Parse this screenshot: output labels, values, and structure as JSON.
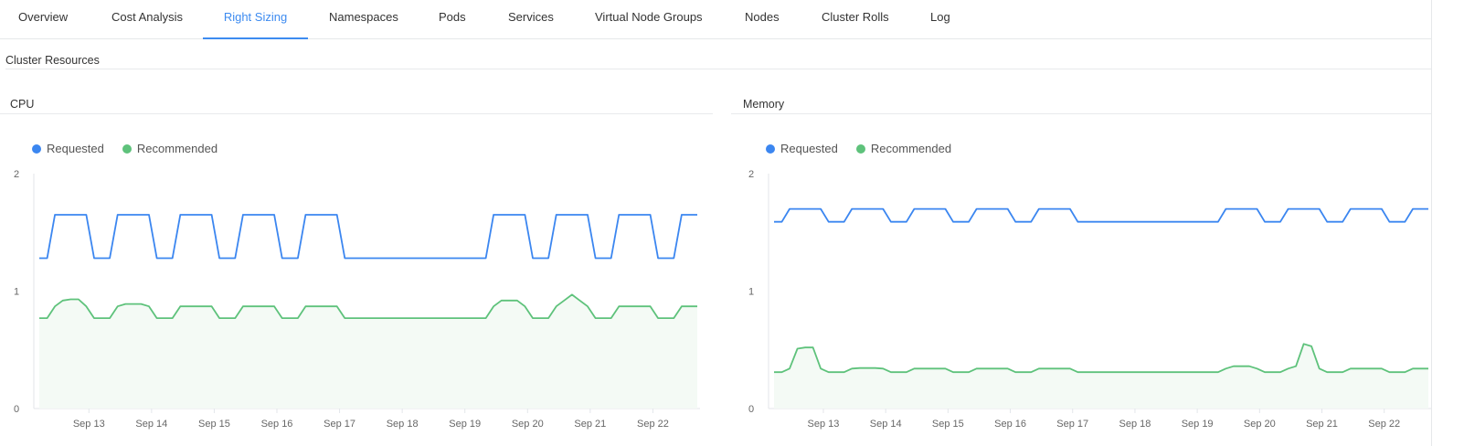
{
  "tabs": [
    {
      "label": "Overview"
    },
    {
      "label": "Cost Analysis"
    },
    {
      "label": "Right Sizing",
      "active": true
    },
    {
      "label": "Namespaces"
    },
    {
      "label": "Pods"
    },
    {
      "label": "Services"
    },
    {
      "label": "Virtual Node Groups"
    },
    {
      "label": "Nodes"
    },
    {
      "label": "Cluster Rolls"
    },
    {
      "label": "Log"
    }
  ],
  "section_title": "Cluster Resources",
  "colors": {
    "accent": "#3d8bf0",
    "requested": "#3b86f0",
    "recommended": "#5ec27b",
    "recommended_fill": "#f4faf5"
  },
  "chart_data": [
    {
      "title": "CPU",
      "type": "area",
      "legend": {
        "placement": "top-left",
        "entries": [
          "Requested",
          "Recommended"
        ]
      },
      "ylim": [
        0,
        2
      ],
      "yticks": [
        "0",
        "1",
        "2"
      ],
      "xticks": [
        "Sep 13",
        "Sep 14",
        "Sep 15",
        "Sep 16",
        "Sep 17",
        "Sep 18",
        "Sep 19",
        "Sep 20",
        "Sep 21",
        "Sep 22"
      ],
      "xlim": [
        "Sep 12 05:00",
        "Sep 22 17:00"
      ],
      "grid": false,
      "series": [
        {
          "name": "Requested",
          "color": "#3b86f0",
          "values": [
            1.28,
            1.28,
            1.65,
            1.65,
            1.65,
            1.65,
            1.65,
            1.28,
            1.28,
            1.28,
            1.65,
            1.65,
            1.65,
            1.65,
            1.65,
            1.28,
            1.28,
            1.28,
            1.65,
            1.65,
            1.65,
            1.65,
            1.65,
            1.28,
            1.28,
            1.28,
            1.65,
            1.65,
            1.65,
            1.65,
            1.65,
            1.28,
            1.28,
            1.28,
            1.65,
            1.65,
            1.65,
            1.65,
            1.65,
            1.28,
            1.28,
            1.28,
            1.28,
            1.28,
            1.28,
            1.28,
            1.28,
            1.28,
            1.28,
            1.28,
            1.28,
            1.28,
            1.28,
            1.28,
            1.28,
            1.28,
            1.28,
            1.28,
            1.65,
            1.65,
            1.65,
            1.65,
            1.65,
            1.28,
            1.28,
            1.28,
            1.65,
            1.65,
            1.65,
            1.65,
            1.65,
            1.28,
            1.28,
            1.28,
            1.65,
            1.65,
            1.65,
            1.65,
            1.65,
            1.28,
            1.28,
            1.28,
            1.65,
            1.65,
            1.65
          ]
        },
        {
          "name": "Recommended",
          "color": "#5ec27b",
          "fill": true,
          "values": [
            0.77,
            0.77,
            0.87,
            0.92,
            0.93,
            0.93,
            0.87,
            0.77,
            0.77,
            0.77,
            0.87,
            0.89,
            0.89,
            0.89,
            0.87,
            0.77,
            0.77,
            0.77,
            0.87,
            0.87,
            0.87,
            0.87,
            0.87,
            0.77,
            0.77,
            0.77,
            0.87,
            0.87,
            0.87,
            0.87,
            0.87,
            0.77,
            0.77,
            0.77,
            0.87,
            0.87,
            0.87,
            0.87,
            0.87,
            0.77,
            0.77,
            0.77,
            0.77,
            0.77,
            0.77,
            0.77,
            0.77,
            0.77,
            0.77,
            0.77,
            0.77,
            0.77,
            0.77,
            0.77,
            0.77,
            0.77,
            0.77,
            0.77,
            0.87,
            0.92,
            0.92,
            0.92,
            0.87,
            0.77,
            0.77,
            0.77,
            0.87,
            0.92,
            0.97,
            0.92,
            0.87,
            0.77,
            0.77,
            0.77,
            0.87,
            0.87,
            0.87,
            0.87,
            0.87,
            0.77,
            0.77,
            0.77,
            0.87,
            0.87,
            0.87
          ]
        }
      ]
    },
    {
      "title": "Memory",
      "type": "area",
      "legend": {
        "placement": "top-left",
        "entries": [
          "Requested",
          "Recommended"
        ]
      },
      "ylim": [
        0,
        2
      ],
      "yticks": [
        "0",
        "1",
        "2"
      ],
      "xticks": [
        "Sep 13",
        "Sep 14",
        "Sep 15",
        "Sep 16",
        "Sep 17",
        "Sep 18",
        "Sep 19",
        "Sep 20",
        "Sep 21",
        "Sep 22"
      ],
      "xlim": [
        "Sep 12 05:00",
        "Sep 22 17:00"
      ],
      "grid": false,
      "series": [
        {
          "name": "Requested",
          "color": "#3b86f0",
          "values": [
            1.59,
            1.59,
            1.7,
            1.7,
            1.7,
            1.7,
            1.7,
            1.59,
            1.59,
            1.59,
            1.7,
            1.7,
            1.7,
            1.7,
            1.7,
            1.59,
            1.59,
            1.59,
            1.7,
            1.7,
            1.7,
            1.7,
            1.7,
            1.59,
            1.59,
            1.59,
            1.7,
            1.7,
            1.7,
            1.7,
            1.7,
            1.59,
            1.59,
            1.59,
            1.7,
            1.7,
            1.7,
            1.7,
            1.7,
            1.59,
            1.59,
            1.59,
            1.59,
            1.59,
            1.59,
            1.59,
            1.59,
            1.59,
            1.59,
            1.59,
            1.59,
            1.59,
            1.59,
            1.59,
            1.59,
            1.59,
            1.59,
            1.59,
            1.7,
            1.7,
            1.7,
            1.7,
            1.7,
            1.59,
            1.59,
            1.59,
            1.7,
            1.7,
            1.7,
            1.7,
            1.7,
            1.59,
            1.59,
            1.59,
            1.7,
            1.7,
            1.7,
            1.7,
            1.7,
            1.59,
            1.59,
            1.59,
            1.7,
            1.7,
            1.7
          ]
        },
        {
          "name": "Recommended",
          "color": "#5ec27b",
          "fill": true,
          "values": [
            0.31,
            0.31,
            0.34,
            0.51,
            0.52,
            0.52,
            0.34,
            0.31,
            0.31,
            0.31,
            0.34,
            0.345,
            0.345,
            0.345,
            0.34,
            0.31,
            0.31,
            0.31,
            0.34,
            0.34,
            0.34,
            0.34,
            0.34,
            0.31,
            0.31,
            0.31,
            0.34,
            0.34,
            0.34,
            0.34,
            0.34,
            0.31,
            0.31,
            0.31,
            0.34,
            0.34,
            0.34,
            0.34,
            0.34,
            0.31,
            0.31,
            0.31,
            0.31,
            0.31,
            0.31,
            0.31,
            0.31,
            0.31,
            0.31,
            0.31,
            0.31,
            0.31,
            0.31,
            0.31,
            0.31,
            0.31,
            0.31,
            0.31,
            0.34,
            0.36,
            0.36,
            0.36,
            0.34,
            0.31,
            0.31,
            0.31,
            0.34,
            0.36,
            0.55,
            0.53,
            0.34,
            0.31,
            0.31,
            0.31,
            0.34,
            0.34,
            0.34,
            0.34,
            0.34,
            0.31,
            0.31,
            0.31,
            0.34,
            0.34,
            0.34
          ]
        }
      ]
    }
  ]
}
